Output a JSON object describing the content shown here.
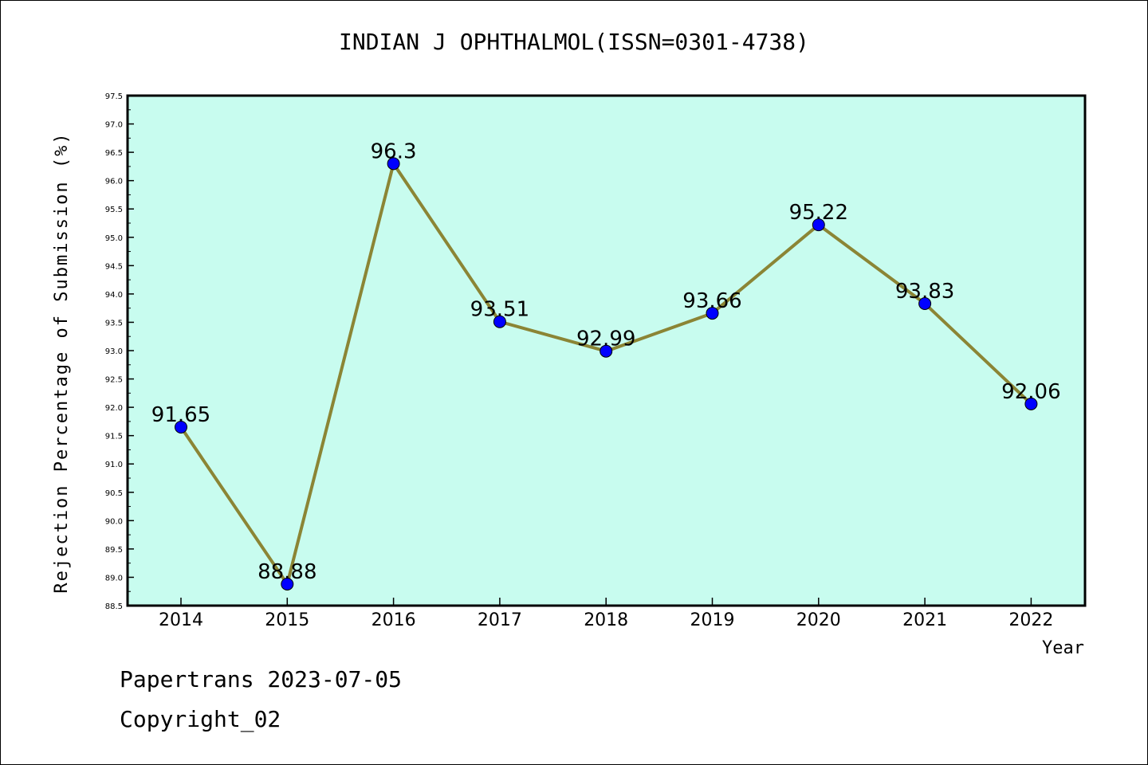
{
  "header": {
    "title": "INDIAN J OPHTHALMOL(ISSN=0301-4738)"
  },
  "footer": {
    "line1": "Papertrans 2023-07-05",
    "line2": "Copyright_02"
  },
  "colors": {
    "plot_background": "#c8fcef",
    "line": "#8b8535",
    "marker": "#0000ff",
    "frame": "#000000"
  },
  "chart_data": {
    "type": "line",
    "title": "INDIAN J OPHTHALMOL(ISSN=0301-4738)",
    "xlabel": "Year",
    "ylabel": "Rejection Percentage of Submission (%)",
    "categories": [
      "2014",
      "2015",
      "2016",
      "2017",
      "2018",
      "2019",
      "2020",
      "2021",
      "2022"
    ],
    "series": [
      {
        "values": [
          91.65,
          88.88,
          96.3,
          93.51,
          92.99,
          93.66,
          95.22,
          93.83,
          92.06
        ],
        "labels": [
          "91.65",
          "88.88",
          "96.3",
          "93.51",
          "92.99",
          "93.66",
          "95.22",
          "93.83",
          "92.06"
        ]
      }
    ],
    "ylim": [
      88.5,
      97.5
    ],
    "yticks": [
      "88.5",
      "89.0",
      "89.5",
      "90.0",
      "90.5",
      "91.0",
      "91.5",
      "92.0",
      "92.5",
      "93.0",
      "93.5",
      "94.0",
      "94.5",
      "95.0",
      "95.5",
      "96.0",
      "96.5",
      "97.0",
      "97.5"
    ],
    "grid": false,
    "legend": "none"
  }
}
